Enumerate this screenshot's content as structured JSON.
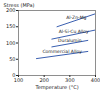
{
  "chart_data": {
    "type": "line",
    "x_label": "Temperature (°C)",
    "y_label": "Stress (MPa)",
    "xlim": [
      100,
      400
    ],
    "xticks": [
      100,
      200,
      300,
      400
    ],
    "ylim": [
      0,
      200
    ],
    "yticks": [
      0,
      50,
      100,
      150,
      200
    ],
    "grid": false,
    "series": [
      {
        "name": "Al-Zn-Mg",
        "color": "#3a5fb0",
        "x": [
          250,
          400
        ],
        "values": [
          150,
          190
        ]
      },
      {
        "name": "Al-Si-Cu Alloy",
        "color": "#3a5fb0",
        "x": [
          230,
          400
        ],
        "values": [
          112,
          140
        ]
      },
      {
        "name": "Duralumin",
        "color": "#3a5fb0",
        "x": [
          230,
          370
        ],
        "values": [
          88,
          108
        ]
      },
      {
        "name": "Commercial Alloy",
        "color": "#3a5fb0",
        "x": [
          170,
          370
        ],
        "values": [
          52,
          74
        ]
      }
    ]
  }
}
